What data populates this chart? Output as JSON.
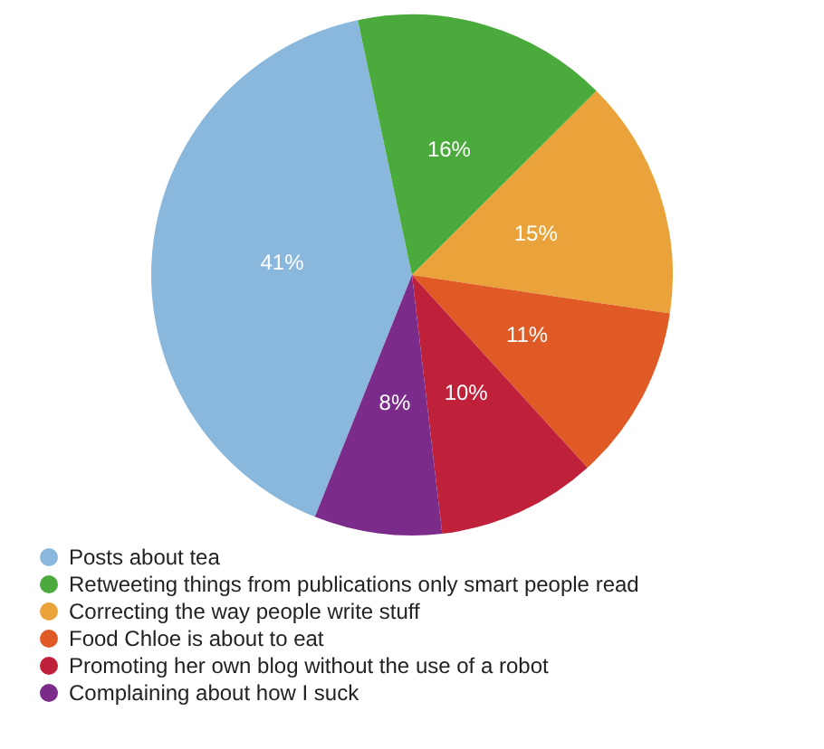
{
  "chart_data": {
    "type": "pie",
    "categories": [
      "Posts about tea",
      "Retweeting things from publications only smart people read",
      "Correcting the way people write stuff",
      "Food Chloe is about to eat",
      "Promoting her own blog without the use of a robot",
      "Complaining about how I suck"
    ],
    "values": [
      41,
      16,
      15,
      11,
      10,
      8
    ],
    "value_labels": [
      "41%",
      "16%",
      "15%",
      "11%",
      "10%",
      "8%"
    ],
    "colors": [
      "#8ab8dc",
      "#4aaa3c",
      "#e9a33a",
      "#e05a26",
      "#c0213a",
      "#7b2c8a"
    ],
    "legend": "bottom"
  }
}
